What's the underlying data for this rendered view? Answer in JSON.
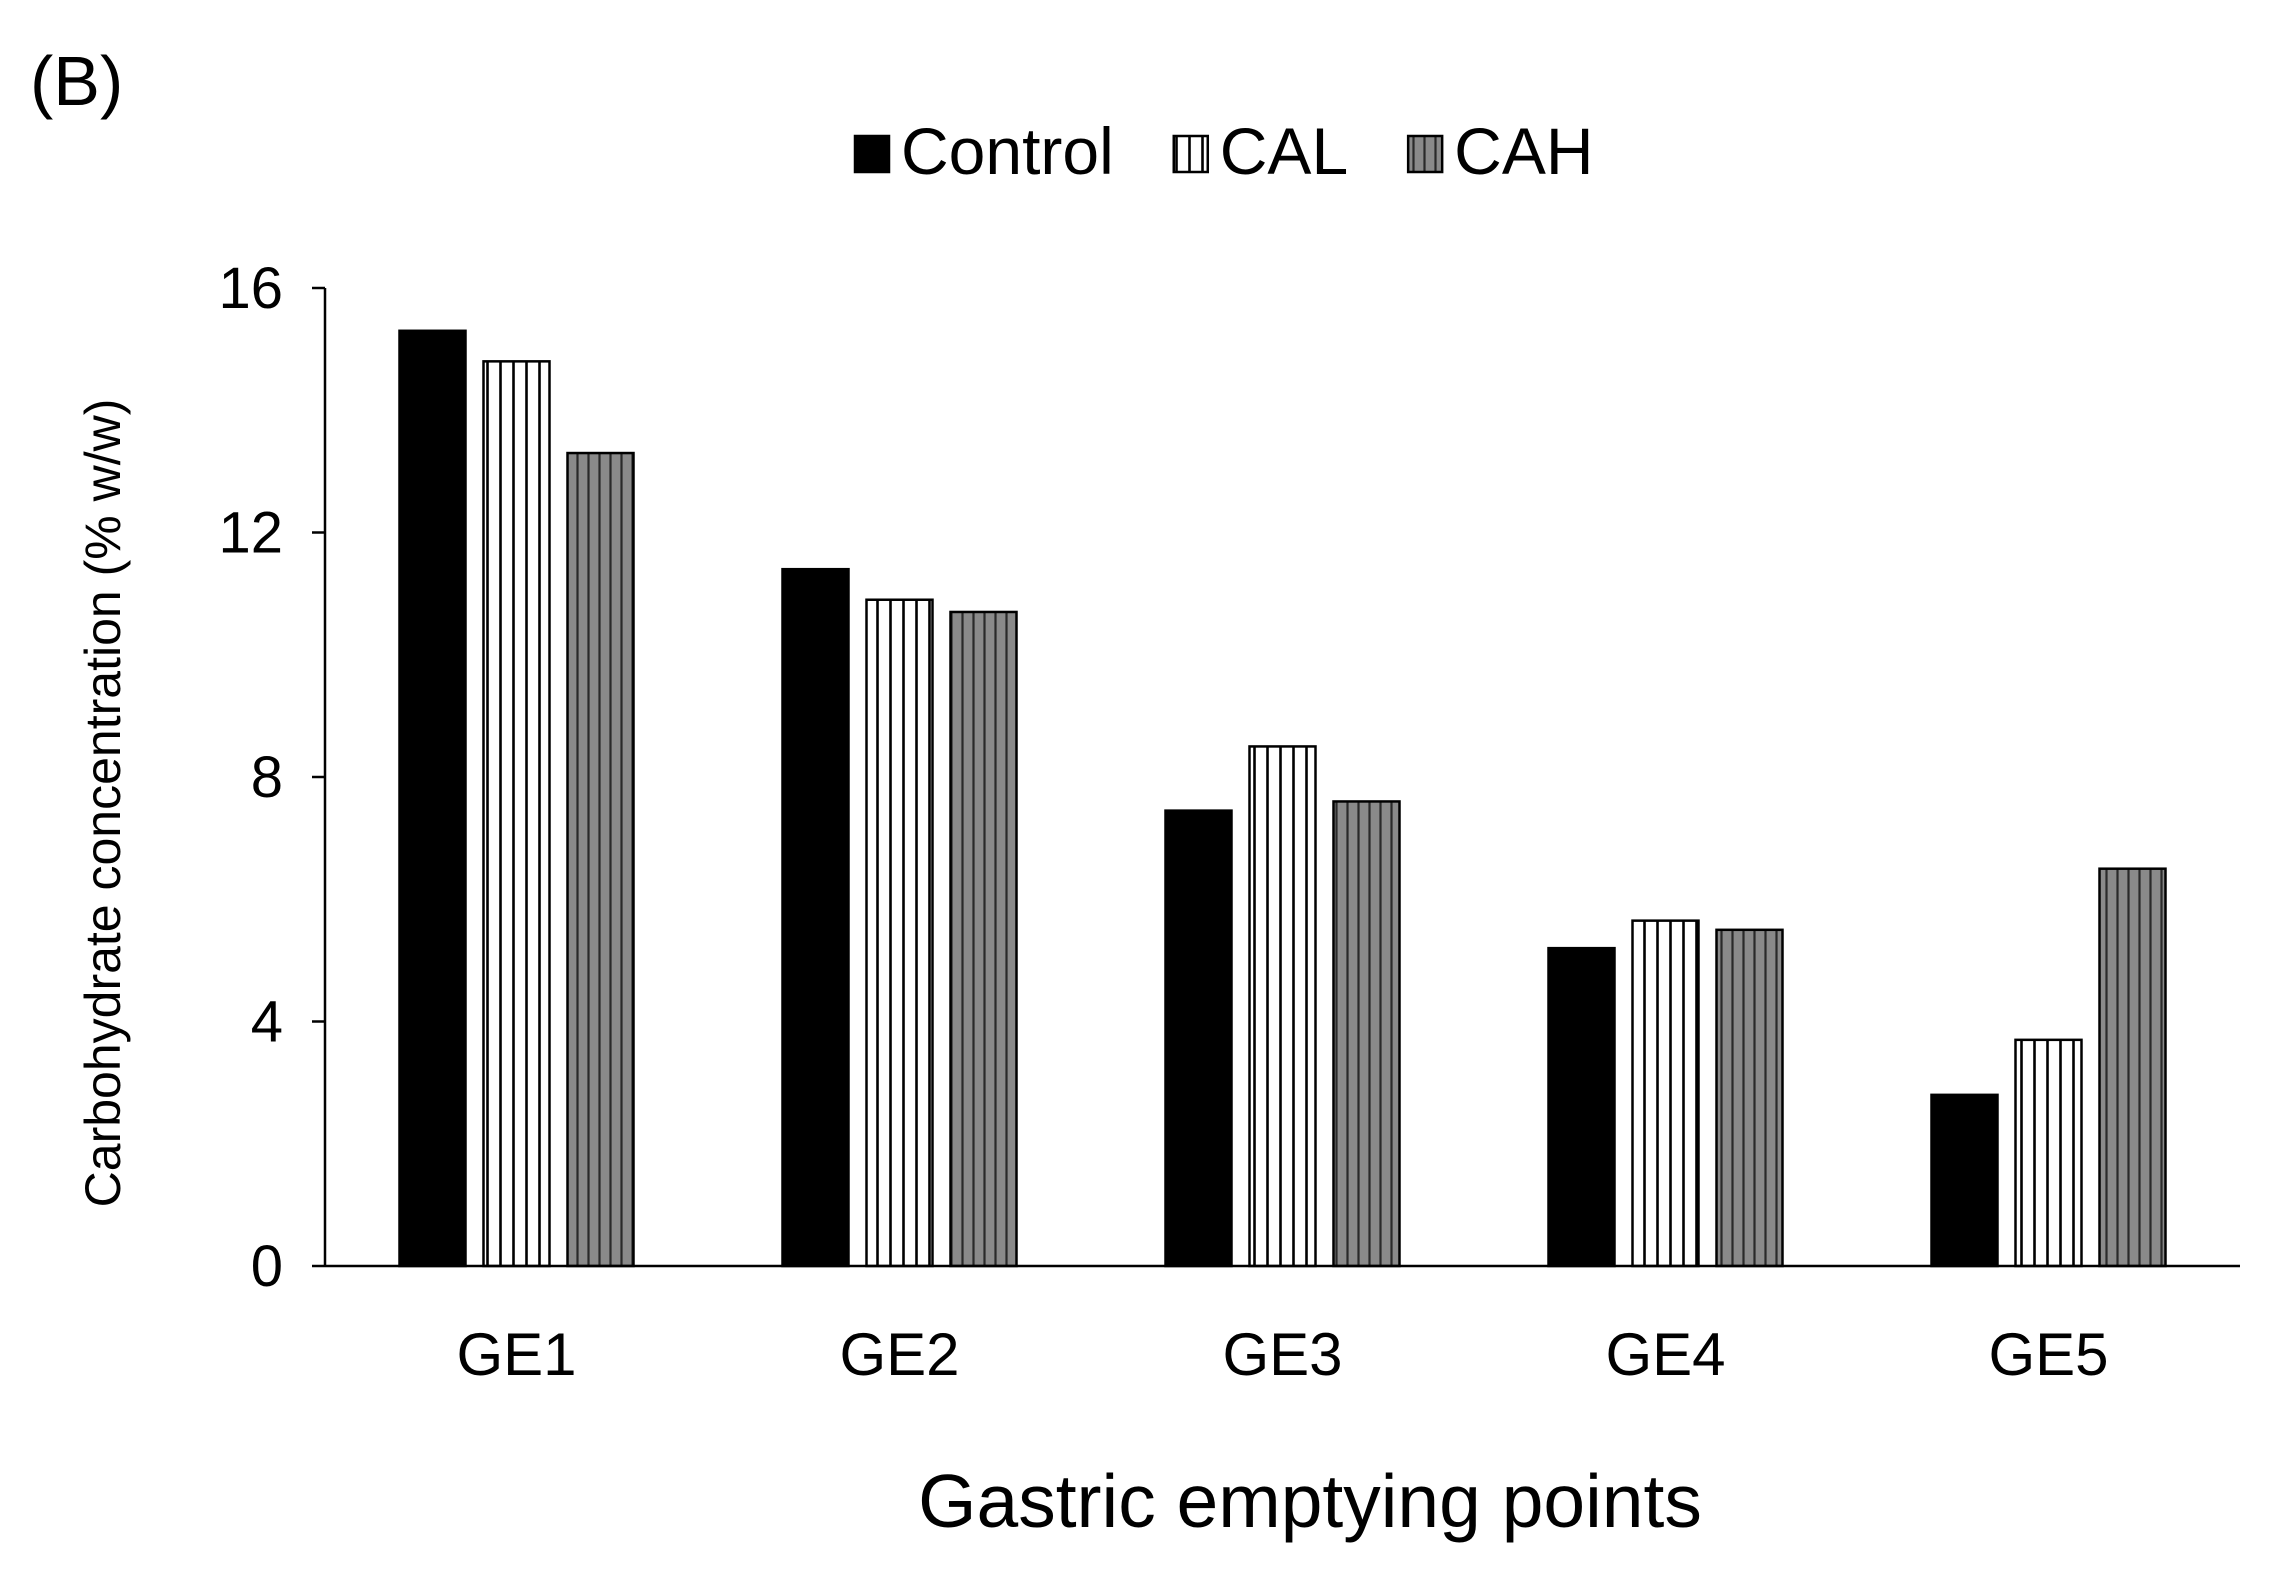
{
  "panel_label": "(B)",
  "chart_data": {
    "type": "bar",
    "title": "",
    "xlabel": "Gastric emptying points",
    "ylabel": "Carbohydrate concentration (% w/w)",
    "ylim": [
      0,
      16
    ],
    "yticks": [
      0,
      4,
      8,
      12,
      16
    ],
    "categories": [
      "GE1",
      "GE2",
      "GE3",
      "GE4",
      "GE5"
    ],
    "legend_position": "top-center",
    "grid": false,
    "series": [
      {
        "name": "Control",
        "fill": "solid",
        "color": "#000000",
        "values": [
          15.3,
          11.4,
          7.45,
          5.2,
          2.8
        ]
      },
      {
        "name": "CAL",
        "fill": "vertical-stripes-white",
        "color": "#ffffff",
        "values": [
          14.8,
          10.9,
          8.5,
          5.65,
          3.7
        ]
      },
      {
        "name": "CAH",
        "fill": "vertical-stripes-gray",
        "color": "#808080",
        "values": [
          13.3,
          10.7,
          7.6,
          5.5,
          6.5
        ]
      }
    ]
  }
}
